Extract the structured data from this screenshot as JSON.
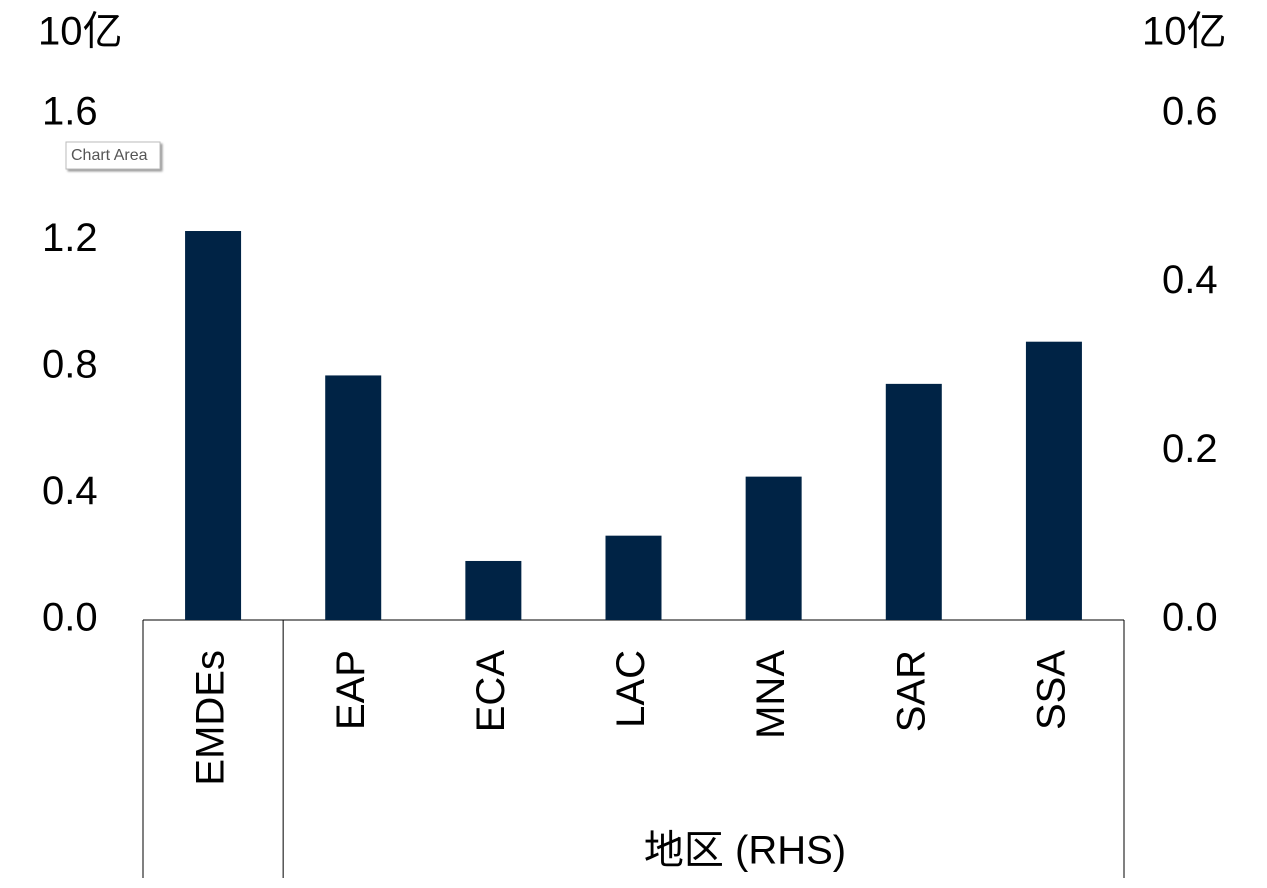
{
  "chart_data": {
    "type": "bar",
    "y_unit": "10亿",
    "y2_unit": "10亿",
    "tooltip": "Chart Area",
    "categories": [
      "EMDEs",
      "EAP",
      "ECA",
      "LAC",
      "MNA",
      "SAR",
      "SSA"
    ],
    "group_label": "地区 (RHS)",
    "series": [
      {
        "color": "#002345",
        "values": [
          1.23,
          null,
          null,
          null,
          null,
          null,
          null
        ]
      },
      {
        "color": "#002345",
        "axis": "y2",
        "values": [
          null,
          0.29,
          0.07,
          0.1,
          0.17,
          0.28,
          0.33
        ]
      }
    ],
    "ylim": [
      0,
      1.6
    ],
    "yticks": [
      {
        "value": 0,
        "label": "0.0"
      },
      0.4,
      0.8,
      1.2,
      1.6
    ],
    "y2lim": [
      0,
      0.6
    ],
    "y2ticks": [
      {
        "value": 0,
        "label": "0.0"
      },
      0.2,
      0.4,
      0.6
    ],
    "grid": false
  }
}
